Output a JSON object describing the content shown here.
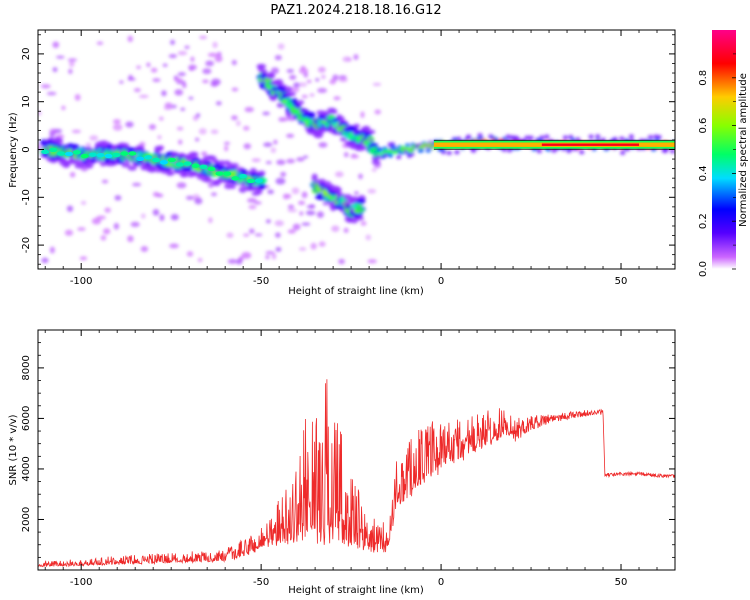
{
  "title": "PAZ1.2024.218.18.16.G12",
  "chart_data": [
    {
      "type": "heatmap",
      "xlabel": "Height of straight line (km)",
      "ylabel": "Frequency (Hz)",
      "xlim": [
        -112,
        65
      ],
      "ylim": [
        -25,
        25
      ],
      "xticks": [
        -100,
        -50,
        0,
        50
      ],
      "yticks": [
        -20,
        -10,
        0,
        10,
        20
      ],
      "colorbar": {
        "label": "Normalized spectral amplitude",
        "range": [
          0,
          1
        ],
        "ticks": [
          "0.0",
          "0.2",
          "0.4",
          "0.6",
          "0.8"
        ],
        "colormap": [
          "#ffffff",
          "#cc66ff",
          "#5500ff",
          "#0000ff",
          "#00ddff",
          "#00ff66",
          "#88ff00",
          "#ffcc00",
          "#ff0000",
          "#ff0088"
        ]
      },
      "ridges": [
        {
          "x": [
            -110,
            -100,
            -90,
            -80,
            -70,
            -60,
            -55,
            -50
          ],
          "y": [
            0,
            -1,
            -1,
            -2,
            -3,
            -5,
            -6,
            -7
          ]
        },
        {
          "x": [
            -50,
            -45,
            -40,
            -35,
            -30,
            -25,
            -20,
            -18
          ],
          "y": [
            15,
            12,
            8,
            5,
            6,
            3,
            2,
            -1
          ]
        },
        {
          "x": [
            -35,
            -30,
            -27,
            -25,
            -22
          ],
          "y": [
            -8,
            -10,
            -11,
            -13,
            -12
          ]
        },
        {
          "x": [
            -18,
            -10,
            -5,
            0,
            5,
            10,
            15,
            20,
            30,
            40,
            50,
            65
          ],
          "y": [
            -1,
            0,
            0.5,
            1,
            1,
            1.5,
            1.5,
            1.2,
            1,
            1,
            1,
            1
          ]
        }
      ],
      "grid": false
    },
    {
      "type": "line",
      "xlabel": "Height of straight line (km)",
      "ylabel": "SNR (10 * v/v)",
      "xlim": [
        -112,
        65
      ],
      "ylim": [
        0,
        9500
      ],
      "xticks": [
        -100,
        -50,
        0,
        50
      ],
      "yticks": [
        2000,
        4000,
        6000,
        8000
      ],
      "color": "#ee2a2a",
      "envelope": {
        "x": [
          -112,
          -100,
          -80,
          -70,
          -60,
          -55,
          -50,
          -45,
          -40,
          -38,
          -35,
          -33,
          -31,
          -28,
          -25,
          -20,
          -15,
          -12,
          -10,
          -8,
          -5,
          0,
          5,
          10,
          15,
          20,
          25,
          30,
          35,
          40,
          45,
          45.5,
          50,
          55,
          60,
          65
        ],
        "base": [
          150,
          200,
          300,
          350,
          400,
          600,
          900,
          1200,
          1500,
          1700,
          1800,
          1900,
          2000,
          1600,
          1200,
          900,
          800,
          2800,
          3000,
          3300,
          3700,
          4100,
          4500,
          4900,
          5200,
          5500,
          5800,
          6000,
          6100,
          6200,
          6250,
          3750,
          3800,
          3800,
          3750,
          3700
        ],
        "spread": [
          200,
          250,
          400,
          400,
          450,
          700,
          1000,
          1800,
          3000,
          4500,
          5000,
          6000,
          7000,
          5000,
          3000,
          1500,
          1000,
          2000,
          2500,
          2500,
          2200,
          2000,
          1800,
          1600,
          1200,
          1000,
          600,
          400,
          300,
          250,
          200,
          150,
          150,
          150,
          150,
          150
        ]
      },
      "grid": false
    }
  ]
}
